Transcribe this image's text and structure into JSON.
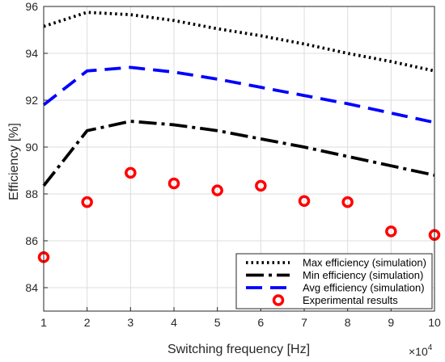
{
  "chart_data": {
    "type": "line",
    "xlabel": "Switching frequency [Hz]",
    "ylabel": "Efficiency [%]",
    "x_multiplier": "×10",
    "x_multiplier_exp": "4",
    "xlim": [
      1,
      10
    ],
    "ylim": [
      83,
      96
    ],
    "xticks": [
      "1",
      "2",
      "3",
      "4",
      "5",
      "6",
      "7",
      "8",
      "9",
      "10"
    ],
    "yticks": [
      "84",
      "86",
      "88",
      "90",
      "92",
      "94",
      "96"
    ],
    "grid": true,
    "legend_position": "bottom-right",
    "x": [
      1,
      2,
      3,
      4,
      5,
      6,
      7,
      8,
      9,
      10
    ],
    "series": [
      {
        "name": "Max efficiency (simulation)",
        "style": "dotted",
        "color": "#000000",
        "values": [
          95.15,
          95.75,
          95.65,
          95.4,
          95.05,
          94.75,
          94.4,
          94.0,
          93.65,
          93.25
        ]
      },
      {
        "name": "Min efficiency (simulation)",
        "style": "dashdot",
        "color": "#000000",
        "values": [
          88.35,
          90.7,
          91.1,
          90.95,
          90.7,
          90.35,
          90.0,
          89.6,
          89.2,
          88.8
        ]
      },
      {
        "name": "Avg efficiency (simulation)",
        "style": "dashed",
        "color": "#0000ff",
        "values": [
          91.8,
          93.25,
          93.4,
          93.2,
          92.9,
          92.55,
          92.2,
          91.85,
          91.45,
          91.05
        ]
      },
      {
        "name": "Experimental results",
        "style": "markers",
        "color": "#ff0000",
        "values": [
          85.3,
          87.65,
          88.9,
          88.45,
          88.15,
          88.35,
          87.7,
          87.65,
          86.4,
          86.25
        ]
      }
    ]
  }
}
